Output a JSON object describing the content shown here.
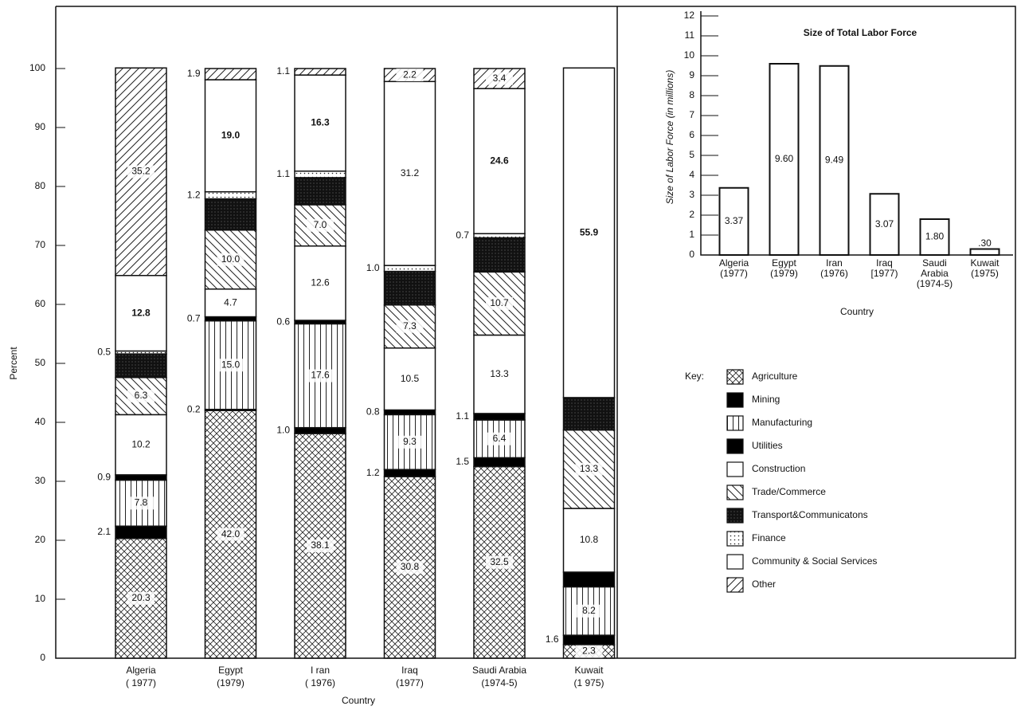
{
  "chart_data": [
    {
      "type": "stacked-bar",
      "ylabel": "Percent",
      "xlabel": "Country",
      "categories": [
        [
          "Algeria",
          "( 1977)"
        ],
        [
          "Egypt",
          "(1979)"
        ],
        [
          "I ran",
          "( 1976)"
        ],
        [
          "Iraq",
          "(1977)"
        ],
        [
          "Saudi  Arabia",
          "(1974-5)"
        ],
        [
          "Kuwait",
          "(1 975)"
        ]
      ],
      "ylim": [
        0,
        100
      ],
      "yticks": [
        0,
        10,
        20,
        30,
        40,
        50,
        60,
        70,
        80,
        90,
        100
      ],
      "legend_title": "Key:",
      "series": [
        {
          "name": "Agriculture",
          "pattern": "crosshatch",
          "values": [
            20.3,
            42.0,
            38.1,
            30.8,
            32.5,
            2.3
          ],
          "value_labels": [
            "20.3",
            "42.0",
            "38.1",
            "30.8",
            "32.5",
            "2.3"
          ]
        },
        {
          "name": "Mining",
          "pattern": "solid",
          "values": [
            2.1,
            0.2,
            1.0,
            1.2,
            1.5,
            1.6
          ],
          "value_labels": [
            "2.1",
            "0.2",
            "1.0",
            "1.2",
            "1.5",
            "1.6"
          ]
        },
        {
          "name": "Manufacturing",
          "pattern": "vertical",
          "values": [
            7.8,
            15.0,
            17.6,
            9.3,
            6.4,
            8.2
          ],
          "value_labels": [
            "7.8",
            "15.0",
            "17.6",
            "9.3",
            "6.4",
            "8.2"
          ]
        },
        {
          "name": "Utilities",
          "pattern": "solid",
          "values": [
            0.9,
            0.7,
            0.6,
            0.8,
            1.1,
            2.5
          ],
          "value_labels": [
            "0.9",
            "0.7",
            "0.6",
            "0.8",
            "1.1",
            null
          ]
        },
        {
          "name": "Construction",
          "pattern": "blank",
          "values": [
            10.2,
            4.7,
            12.6,
            10.5,
            13.3,
            10.8
          ],
          "value_labels": [
            "10.2",
            "4.7",
            "12.6",
            "10.5",
            "13.3",
            "10.8"
          ]
        },
        {
          "name": "Trade/Commerce",
          "pattern": "backdiag",
          "values": [
            6.3,
            10.0,
            7.0,
            7.3,
            10.7,
            13.3
          ],
          "value_labels": [
            "6.3",
            "10.0",
            "7.0",
            "7.3",
            "10.7",
            "13.3"
          ]
        },
        {
          "name": "Transport&Communicatons",
          "pattern": "dark",
          "values": [
            4.0,
            5.3,
            4.6,
            5.7,
            5.8,
            5.5
          ],
          "value_labels": [
            null,
            null,
            null,
            null,
            null,
            null
          ]
        },
        {
          "name": "Finance",
          "pattern": "dots",
          "values": [
            0.5,
            1.2,
            1.1,
            1.0,
            0.7,
            0
          ],
          "value_labels": [
            "0.5",
            "1.2",
            "1.1",
            "1.0",
            "0.7",
            null
          ]
        },
        {
          "name": "Community  &  Social  Services",
          "pattern": "blank",
          "values": [
            12.8,
            19.0,
            16.3,
            31.2,
            24.6,
            55.9
          ],
          "value_labels": [
            "12.8",
            "19.0",
            "16.3",
            "31.2",
            "24.6",
            "55.9"
          ]
        },
        {
          "name": "Other",
          "pattern": "diag",
          "values": [
            35.2,
            1.9,
            1.1,
            2.2,
            3.4,
            0
          ],
          "value_labels": [
            "35.2",
            "1.9",
            "1.1",
            "2.2",
            "3.4",
            null
          ]
        }
      ]
    },
    {
      "type": "bar",
      "title": "Size  of  Total  Labor  Force",
      "ylabel": "Size of Labor Force (in millions)",
      "xlabel": "Country",
      "categories": [
        [
          "Algeria",
          "(1977)"
        ],
        [
          "Egypt",
          "(1979)"
        ],
        [
          "Iran",
          "(1976)"
        ],
        [
          "Iraq",
          "[1977)"
        ],
        [
          "Saudi",
          "Arabia",
          "(1974-5)"
        ],
        [
          "Kuwait",
          "(1975)"
        ]
      ],
      "values": [
        3.37,
        9.6,
        9.49,
        3.07,
        1.8,
        0.3
      ],
      "value_labels": [
        "3.37",
        "9.60",
        "9.49",
        "3.07",
        "1.80",
        ".30"
      ],
      "ylim": [
        0,
        12
      ],
      "yticks": [
        0,
        1,
        2,
        3,
        4,
        5,
        6,
        7,
        8,
        9,
        10,
        11,
        12
      ]
    }
  ]
}
